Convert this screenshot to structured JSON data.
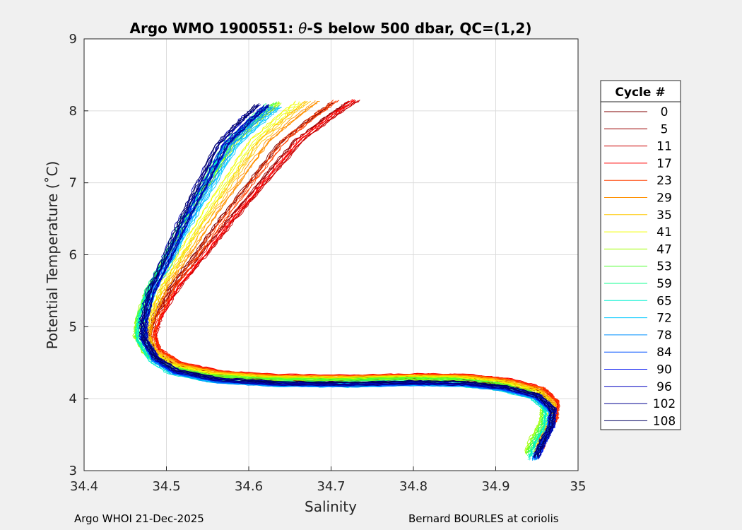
{
  "chart_data": {
    "type": "line",
    "title_main": "Argo WMO 1900551: ",
    "title_theta": "θ",
    "title_rest": "-S below 500 dbar,  QC=(1,2)",
    "xlabel": "Salinity",
    "ylabel": "Potential Temperature (˚C)",
    "xlim": [
      34.4,
      35
    ],
    "ylim": [
      3,
      9
    ],
    "xticks": [
      34.4,
      34.5,
      34.6,
      34.7,
      34.8,
      34.9,
      35
    ],
    "xtick_labels": [
      "34.4",
      "34.5",
      "34.6",
      "34.7",
      "34.8",
      "34.9",
      "35"
    ],
    "yticks": [
      3,
      4,
      5,
      6,
      7,
      8,
      9
    ],
    "ytick_labels": [
      "3",
      "4",
      "5",
      "6",
      "7",
      "8",
      "9"
    ],
    "grid": true,
    "legend": {
      "title": "Cycle #",
      "position": "right-outside",
      "entries": [
        {
          "label": "0",
          "color": "#800000"
        },
        {
          "label": "5",
          "color": "#9a0000"
        },
        {
          "label": "11",
          "color": "#cc0000"
        },
        {
          "label": "17",
          "color": "#ff0000"
        },
        {
          "label": "23",
          "color": "#ff4000"
        },
        {
          "label": "29",
          "color": "#ff9000"
        },
        {
          "label": "35",
          "color": "#ffc800"
        },
        {
          "label": "41",
          "color": "#f0ff00"
        },
        {
          "label": "47",
          "color": "#a0ff00"
        },
        {
          "label": "53",
          "color": "#50ff30"
        },
        {
          "label": "59",
          "color": "#10ff90"
        },
        {
          "label": "65",
          "color": "#00f0d0"
        },
        {
          "label": "72",
          "color": "#00c8ff"
        },
        {
          "label": "78",
          "color": "#0090ff"
        },
        {
          "label": "84",
          "color": "#0050ff"
        },
        {
          "label": "90",
          "color": "#0010f0"
        },
        {
          "label": "96",
          "color": "#0000c0"
        },
        {
          "label": "102",
          "color": "#000090"
        },
        {
          "label": "108",
          "color": "#000060"
        }
      ]
    },
    "base_profile": [
      {
        "s": 34.715,
        "t": 8.1
      },
      {
        "s": 34.69,
        "t": 7.9
      },
      {
        "s": 34.65,
        "t": 7.55
      },
      {
        "s": 34.61,
        "t": 7.0
      },
      {
        "s": 34.57,
        "t": 6.45
      },
      {
        "s": 34.54,
        "t": 6.0
      },
      {
        "s": 34.505,
        "t": 5.5
      },
      {
        "s": 34.485,
        "t": 5.1
      },
      {
        "s": 34.478,
        "t": 4.85
      },
      {
        "s": 34.485,
        "t": 4.6
      },
      {
        "s": 34.51,
        "t": 4.42
      },
      {
        "s": 34.56,
        "t": 4.3
      },
      {
        "s": 34.63,
        "t": 4.25
      },
      {
        "s": 34.72,
        "t": 4.24
      },
      {
        "s": 34.8,
        "t": 4.26
      },
      {
        "s": 34.86,
        "t": 4.25
      },
      {
        "s": 34.91,
        "t": 4.19
      },
      {
        "s": 34.95,
        "t": 4.07
      },
      {
        "s": 34.968,
        "t": 3.88
      },
      {
        "s": 34.966,
        "t": 3.65
      },
      {
        "s": 34.955,
        "t": 3.42
      },
      {
        "s": 34.948,
        "t": 3.22
      }
    ],
    "series_offsets": [
      {
        "color": "#800000",
        "ds": 0.0,
        "dt": 0.0,
        "s_top": 34.7
      },
      {
        "color": "#9a0000",
        "ds": 0.004,
        "dt": 0.05,
        "s_top": 34.72
      },
      {
        "color": "#cc0000",
        "ds": 0.006,
        "dt": 0.08,
        "s_top": 34.725
      },
      {
        "color": "#ff0000",
        "ds": 0.008,
        "dt": 0.1,
        "s_top": 34.72
      },
      {
        "color": "#ff4000",
        "ds": 0.006,
        "dt": 0.07,
        "s_top": 34.7
      },
      {
        "color": "#ff9000",
        "ds": 0.004,
        "dt": 0.05,
        "s_top": 34.68
      },
      {
        "color": "#ffc800",
        "ds": 0.002,
        "dt": 0.04,
        "s_top": 34.67
      },
      {
        "color": "#f0ff00",
        "ds": 0.0,
        "dt": 0.03,
        "s_top": 34.66
      },
      {
        "color": "#a0ff00",
        "ds": -0.01,
        "dt": 0.02,
        "s_top": 34.65
      },
      {
        "color": "#50ff30",
        "ds": -0.008,
        "dt": 0.01,
        "s_top": 34.64
      },
      {
        "color": "#10ff90",
        "ds": -0.006,
        "dt": -0.02,
        "s_top": 34.63
      },
      {
        "color": "#00f0d0",
        "ds": -0.004,
        "dt": -0.05,
        "s_top": 34.63
      },
      {
        "color": "#00c8ff",
        "ds": -0.002,
        "dt": -0.07,
        "s_top": 34.64
      },
      {
        "color": "#0090ff",
        "ds": 0.0,
        "dt": -0.08,
        "s_top": 34.63
      },
      {
        "color": "#0050ff",
        "ds": 0.001,
        "dt": -0.06,
        "s_top": 34.62
      },
      {
        "color": "#0010f0",
        "ds": 0.002,
        "dt": -0.05,
        "s_top": 34.62
      },
      {
        "color": "#0000c0",
        "ds": 0.0,
        "dt": -0.03,
        "s_top": 34.61
      },
      {
        "color": "#000090",
        "ds": 0.003,
        "dt": -0.04,
        "s_top": 34.62
      },
      {
        "color": "#000060",
        "ds": 0.001,
        "dt": -0.02,
        "s_top": 34.61
      }
    ]
  },
  "footer": {
    "left": "Argo WHOI 21-Dec-2025",
    "right": "Bernard BOURLES at coriolis"
  }
}
